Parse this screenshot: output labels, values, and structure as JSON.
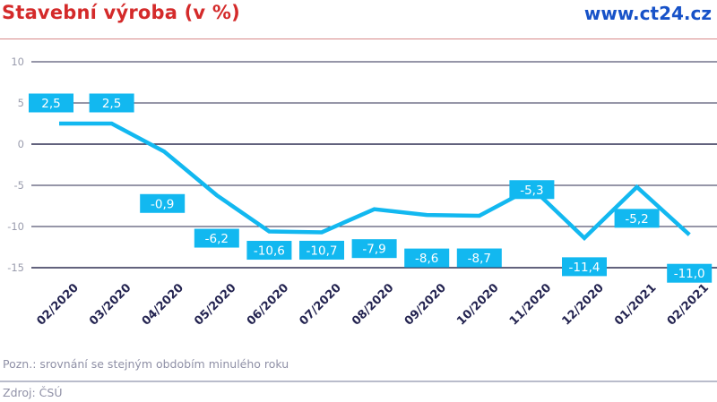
{
  "header": {
    "title": "Stavební výroba (v %)",
    "brand": "www.ct24.cz"
  },
  "footer": {
    "note": "Pozn.: srovnání se stejným obdobím minulého roku",
    "source": "Zdroj: ČSÚ"
  },
  "colors": {
    "title": "#d42a2a",
    "brand": "#1752c8",
    "line": "#12b8f0",
    "label_bg": "#12b8f0",
    "gridline": "#2e2e52",
    "axis_text": "#232350"
  },
  "chart_data": {
    "type": "line",
    "title": "Stavební výroba (v %)",
    "xlabel": "",
    "ylabel": "",
    "ylim": [
      -15,
      10
    ],
    "yticks": [
      10,
      5,
      0,
      -5,
      -10,
      -15
    ],
    "grid": true,
    "legend": null,
    "categories": [
      "02/2020",
      "03/2020",
      "04/2020",
      "05/2020",
      "06/2020",
      "07/2020",
      "08/2020",
      "09/2020",
      "10/2020",
      "11/2020",
      "12/2020",
      "01/2021",
      "02/2021"
    ],
    "series": [
      {
        "name": "Stavební výroba",
        "values": [
          2.5,
          2.5,
          -0.9,
          -6.2,
          -10.6,
          -10.7,
          -7.9,
          -8.6,
          -8.7,
          -5.3,
          -11.4,
          -5.2,
          -11.0
        ],
        "labels": [
          "2,5",
          "2,5",
          "-0,9",
          "-6,2",
          "-10,6",
          "-10,7",
          "-7,9",
          "-8,6",
          "-8,7",
          "-5,3",
          "-11,4",
          "-5,2",
          "-11,0"
        ]
      }
    ],
    "annotations": [
      "Pozn.: srovnání se stejným obdobím minulého roku",
      "Zdroj: ČSÚ"
    ]
  }
}
